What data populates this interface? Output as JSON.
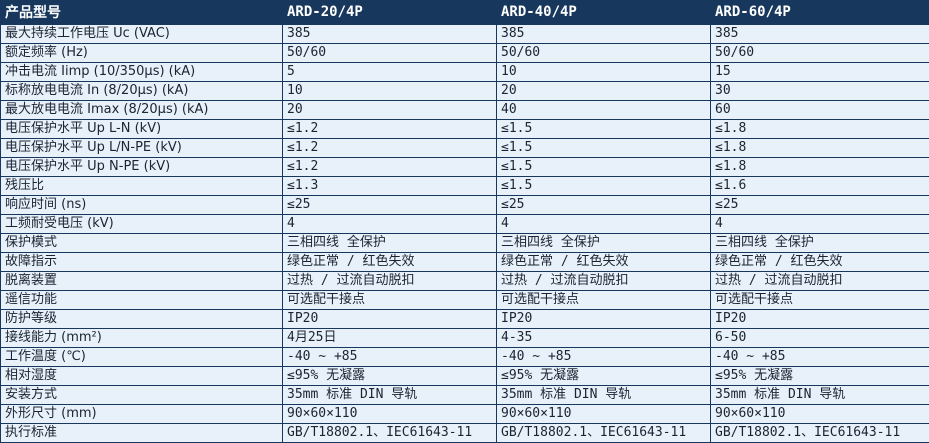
{
  "colors": {
    "header_bg": "#17375d",
    "cell_bg": "#e8f0f9",
    "border": "#17375d",
    "header_text": "#ffffff",
    "cell_text": "#1a2433"
  },
  "table": {
    "header": [
      "产品型号",
      "ARD-20/4P",
      "ARD-40/4P",
      "ARD-60/4P"
    ],
    "rows": [
      {
        "label": "最大持续工作电压 Uc (VAC)",
        "values": [
          "385",
          "385",
          "385"
        ]
      },
      {
        "label": "额定频率 (Hz)",
        "values": [
          "50/60",
          "50/60",
          "50/60"
        ]
      },
      {
        "label": "冲击电流 Iimp (10/350μs) (kA)",
        "values": [
          "5",
          "10",
          "15"
        ]
      },
      {
        "label": "标称放电电流 In (8/20μs) (kA)",
        "values": [
          "10",
          "20",
          "30"
        ]
      },
      {
        "label": "最大放电电流 Imax (8/20μs) (kA)",
        "values": [
          "20",
          "40",
          "60"
        ]
      },
      {
        "label": "电压保护水平 Up L-N (kV)",
        "values": [
          "≤1.2",
          "≤1.5",
          "≤1.8"
        ]
      },
      {
        "label": "电压保护水平 Up L/N-PE (kV)",
        "values": [
          "≤1.2",
          "≤1.5",
          "≤1.8"
        ]
      },
      {
        "label": "电压保护水平 Up N-PE (kV)",
        "values": [
          "≤1.2",
          "≤1.5",
          "≤1.8"
        ]
      },
      {
        "label": "残压比",
        "values": [
          "≤1.3",
          "≤1.5",
          "≤1.6"
        ]
      },
      {
        "label": "响应时间 (ns)",
        "values": [
          "≤25",
          "≤25",
          "≤25"
        ]
      },
      {
        "label": "工频耐受电压 (kV)",
        "values": [
          "4",
          "4",
          "4"
        ]
      },
      {
        "label": "保护模式",
        "values": [
          "三相四线 全保护",
          "三相四线 全保护",
          "三相四线 全保护"
        ]
      },
      {
        "label": "故障指示",
        "values": [
          "绿色正常 / 红色失效",
          "绿色正常 / 红色失效",
          "绿色正常 / 红色失效"
        ]
      },
      {
        "label": "脱离装置",
        "values": [
          "过热 / 过流自动脱扣",
          "过热 / 过流自动脱扣",
          "过热 / 过流自动脱扣"
        ]
      },
      {
        "label": "遥信功能",
        "values": [
          "可选配干接点",
          "可选配干接点",
          "可选配干接点"
        ]
      },
      {
        "label": "防护等级",
        "values": [
          "IP20",
          "IP20",
          "IP20"
        ]
      },
      {
        "label": "接线能力 (mm²)",
        "values": [
          "4月25日",
          "4-35",
          "6-50"
        ]
      },
      {
        "label": "工作温度 (℃)",
        "values": [
          "-40 ~ +85",
          "-40 ~ +85",
          "-40 ~ +85"
        ]
      },
      {
        "label": "相对湿度",
        "values": [
          "≤95% 无凝露",
          "≤95% 无凝露",
          "≤95% 无凝露"
        ]
      },
      {
        "label": "安装方式",
        "values": [
          "35mm 标准 DIN 导轨",
          "35mm 标准 DIN 导轨",
          "35mm 标准 DIN 导轨"
        ]
      },
      {
        "label": "外形尺寸 (mm)",
        "values": [
          "90×60×110",
          "90×60×110",
          "90×60×110"
        ]
      },
      {
        "label": "执行标准",
        "values": [
          "GB/T18802.1、IEC61643-11",
          "GB/T18802.1、IEC61643-11",
          "GB/T18802.1、IEC61643-11"
        ]
      }
    ]
  }
}
